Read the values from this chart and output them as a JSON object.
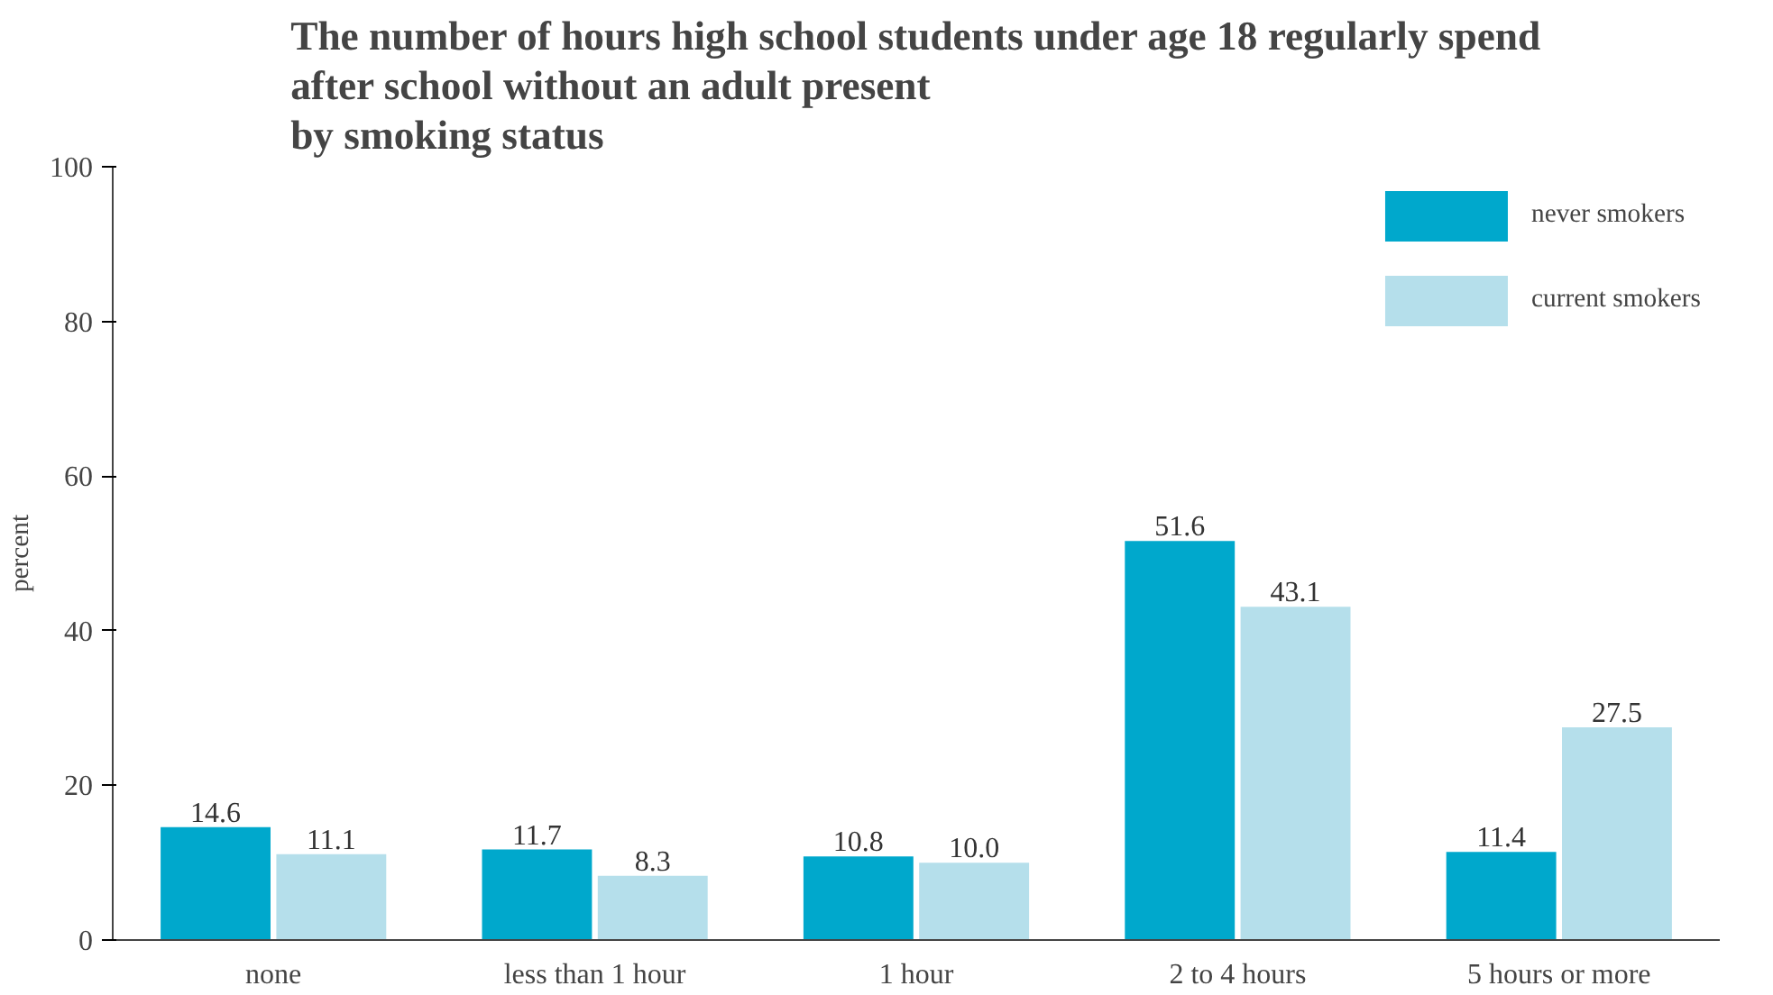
{
  "chart_data": {
    "type": "bar",
    "title": "The number of hours high school students under age 18 regularly spend\nafter school without an adult present\nby smoking status",
    "ylabel": "percent",
    "categories": [
      "none",
      "less than 1 hour",
      "1 hour",
      "2 to 4 hours",
      "5 hours or more"
    ],
    "series": [
      {
        "name": "never smokers",
        "color": "#00a8cc",
        "values": [
          14.6,
          11.7,
          10.8,
          51.6,
          11.4
        ],
        "value_labels": [
          "14.6",
          "11.7",
          "10.8",
          "51.6",
          "11.4"
        ]
      },
      {
        "name": "current smokers",
        "color": "#b5dfeb",
        "values": [
          11.1,
          8.3,
          10.0,
          43.1,
          27.5
        ],
        "value_labels": [
          "11.1",
          "8.3",
          "10.0",
          "43.1",
          "27.5"
        ]
      }
    ],
    "ylim": [
      0,
      100
    ],
    "yticks": [
      0,
      20,
      40,
      60,
      80,
      100
    ],
    "grid": false,
    "legend": "top right"
  }
}
